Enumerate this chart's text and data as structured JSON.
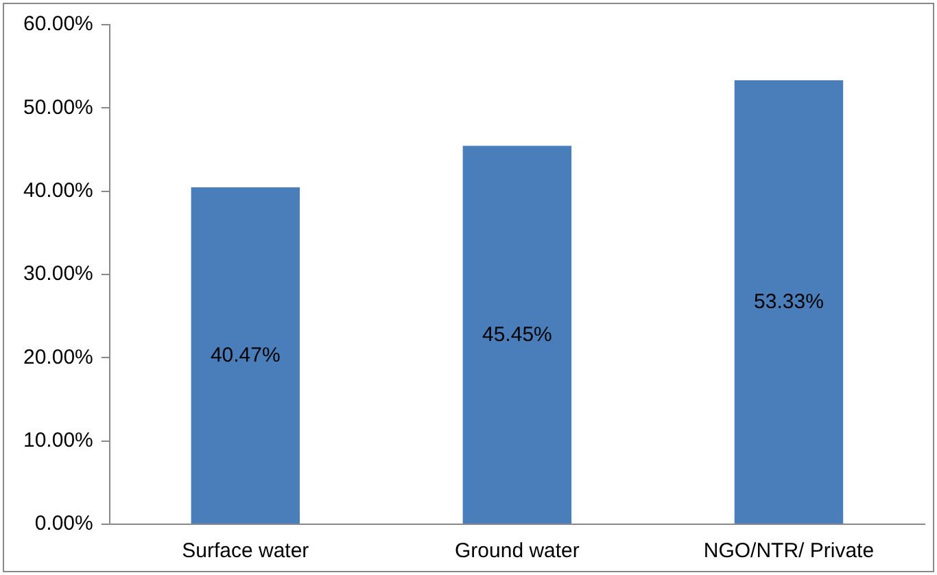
{
  "chart_data": {
    "type": "bar",
    "categories": [
      "Surface water",
      "Ground water",
      "NGO/NTR/ Private"
    ],
    "values": [
      40.47,
      45.45,
      53.33
    ],
    "color": "#4a7ebb",
    "value_labels": [
      "40.47%",
      "45.45%",
      "53.33%"
    ],
    "ylim": [
      0,
      60
    ],
    "yticks": [
      {
        "value": 0,
        "label": "0.00%"
      },
      {
        "value": 10,
        "label": "10.00%"
      },
      {
        "value": 20,
        "label": "20.00%"
      },
      {
        "value": 30,
        "label": "30.00%"
      },
      {
        "value": 40,
        "label": "40.00%"
      },
      {
        "value": 50,
        "label": "50.00%"
      },
      {
        "value": 60,
        "label": "60.00%"
      }
    ],
    "grid": false,
    "legend": false
  }
}
